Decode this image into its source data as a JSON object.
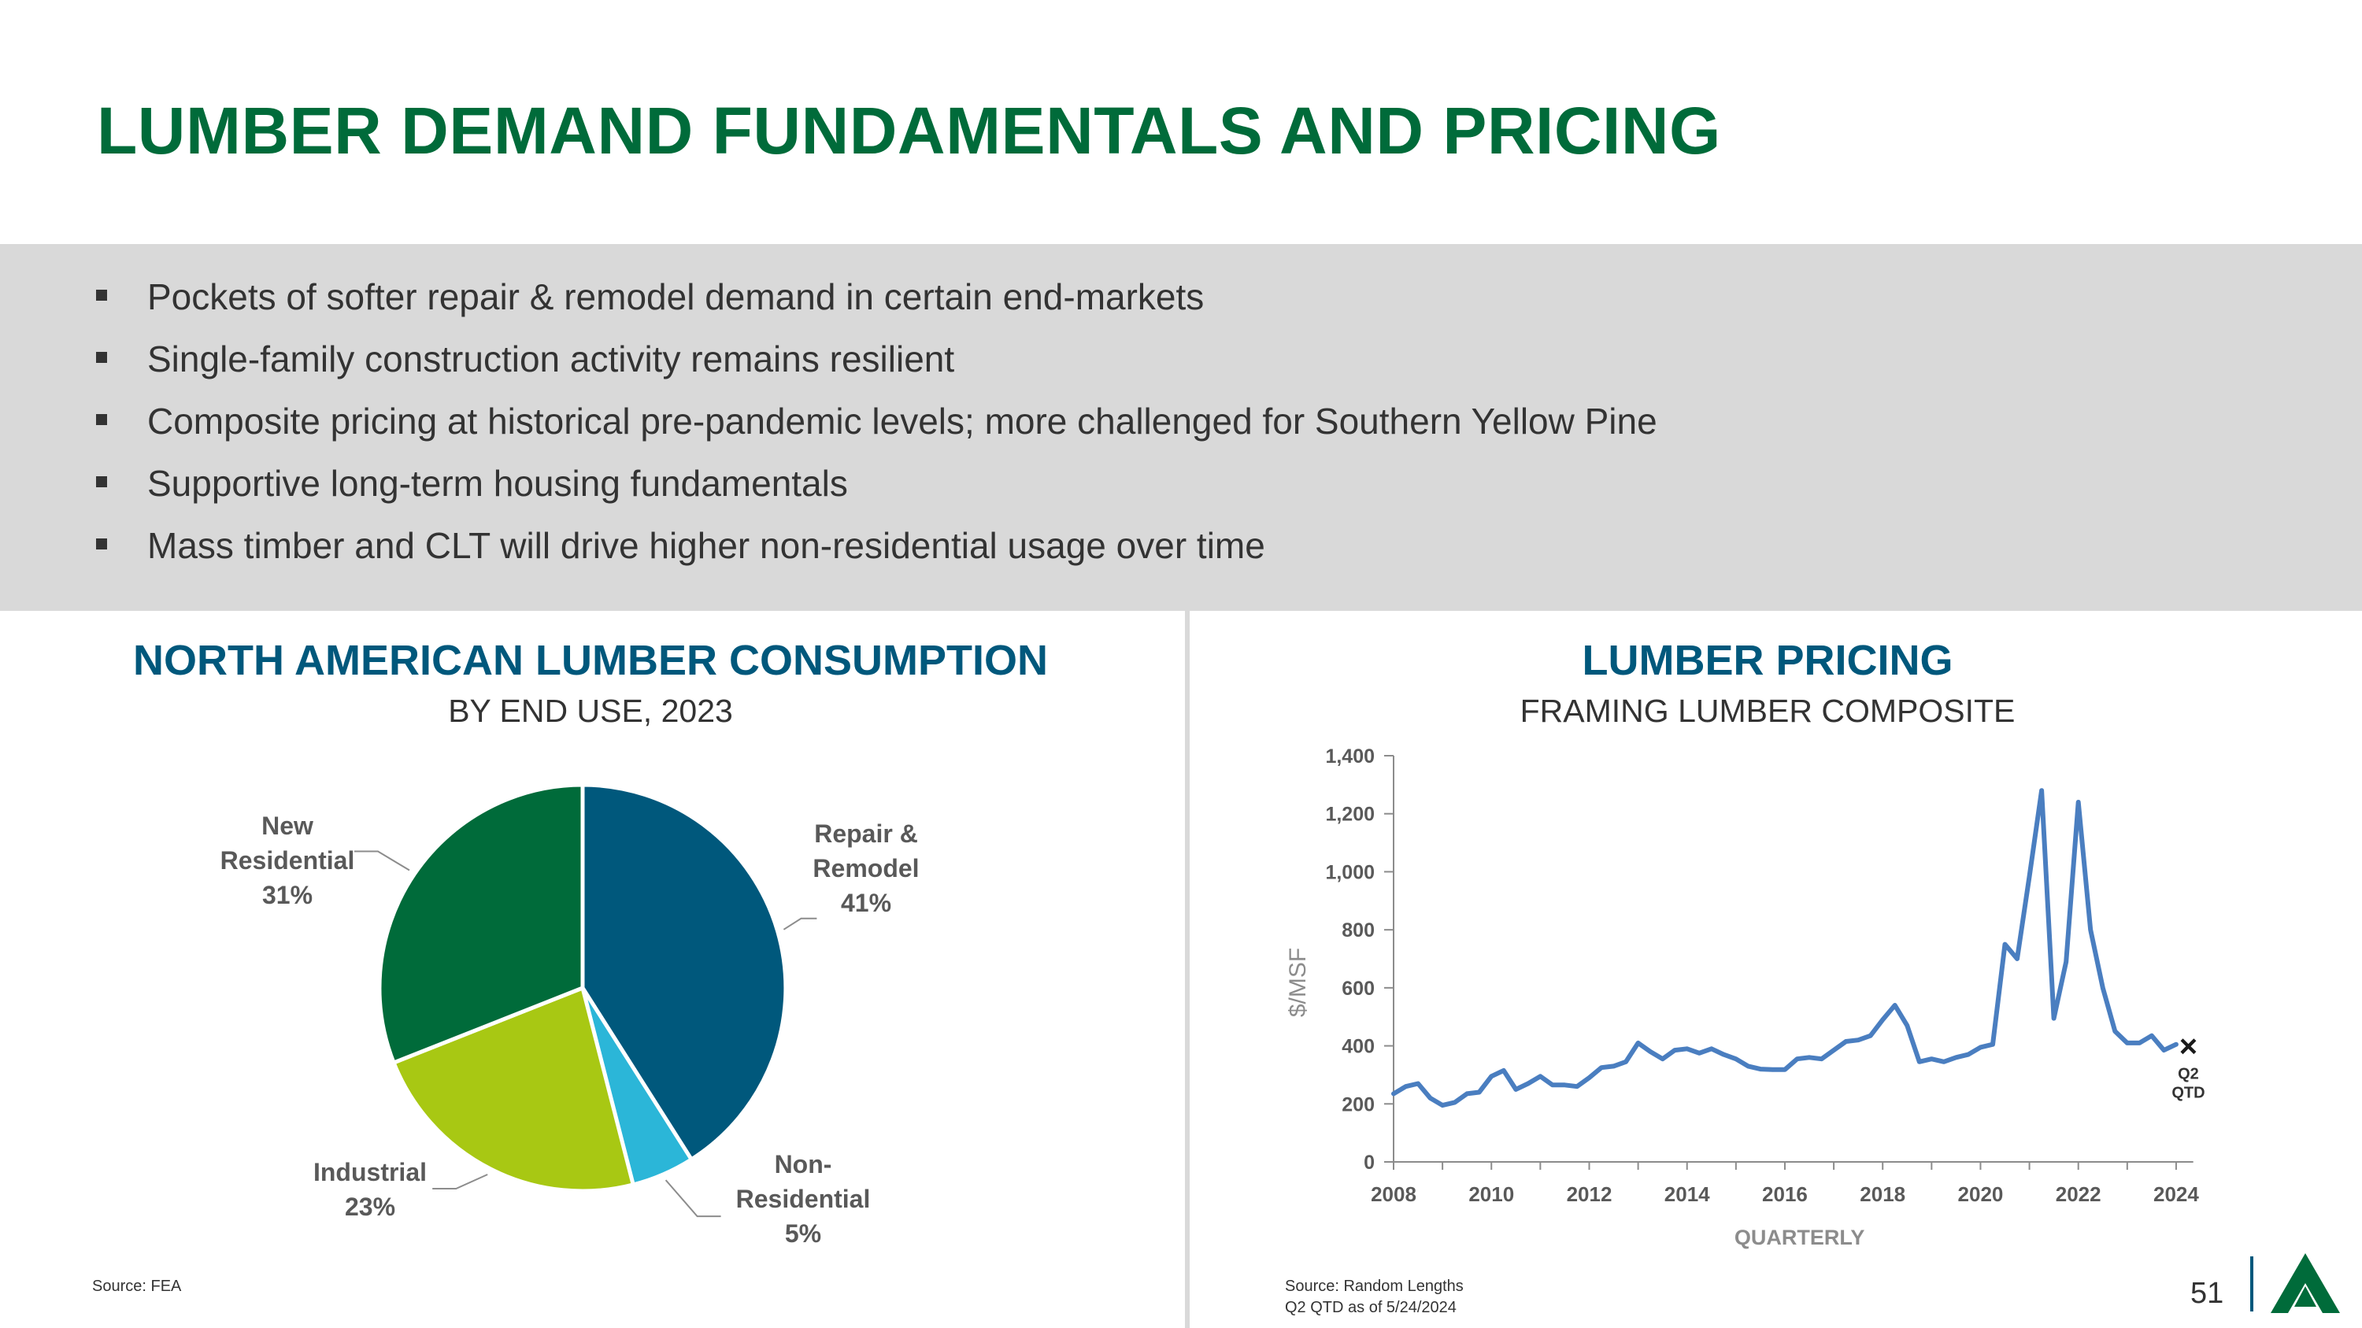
{
  "title": "LUMBER DEMAND FUNDAMENTALS AND PRICING",
  "bullets": [
    "Pockets of softer repair & remodel demand in certain end-markets",
    "Single-family construction activity remains resilient",
    "Composite pricing at historical pre-pandemic levels; more challenged for Southern Yellow Pine",
    "Supportive long-term housing fundamentals",
    "Mass timber and CLT will drive higher non-residential usage over time"
  ],
  "left_chart": {
    "source": "Source: FEA"
  },
  "right_chart": {
    "source_line1": "Source: Random Lengths",
    "source_line2": "Q2 QTD as of 5/24/2024"
  },
  "page_number": "51",
  "logo": "tree-logo",
  "colors": {
    "title_green": "#006b3a",
    "chart_title_blue": "#00587c",
    "repair_remodel": "#00587c",
    "non_residential": "#2bb6d8",
    "industrial": "#a8c813",
    "new_residential": "#006b3a",
    "line": "#4a7ec0"
  },
  "chart_data": [
    {
      "type": "pie",
      "title": "NORTH AMERICAN LUMBER CONSUMPTION",
      "subtitle": "BY END USE, 2023",
      "slices": [
        {
          "label_lines": [
            "Repair &",
            "Remodel",
            "41%"
          ],
          "name": "Repair & Remodel",
          "value": 41
        },
        {
          "label_lines": [
            "Non-",
            "Residential",
            "5%"
          ],
          "name": "Non-Residential",
          "value": 5
        },
        {
          "label_lines": [
            "Industrial",
            "23%"
          ],
          "name": "Industrial",
          "value": 23
        },
        {
          "label_lines": [
            "New",
            "Residential",
            "31%"
          ],
          "name": "New Residential",
          "value": 31
        }
      ]
    },
    {
      "type": "line",
      "title": "LUMBER PRICING",
      "subtitle": "FRAMING LUMBER COMPOSITE",
      "xlabel": "QUARTERLY",
      "ylabel": "$/MSF",
      "xlim": [
        2008,
        2024.5
      ],
      "ylim": [
        0,
        1400
      ],
      "yticks": [
        0,
        200,
        400,
        600,
        800,
        1000,
        1200,
        1400
      ],
      "ytick_labels": [
        "0",
        "200",
        "400",
        "600",
        "800",
        "1,000",
        "1,200",
        "1,400"
      ],
      "xticks": [
        2008,
        2010,
        2012,
        2014,
        2016,
        2018,
        2020,
        2022,
        2024
      ],
      "xtick_labels": [
        "2008",
        "2010",
        "2012",
        "2014",
        "2016",
        "2018",
        "2020",
        "2022",
        "2024"
      ],
      "x": [
        2008.0,
        2008.25,
        2008.5,
        2008.75,
        2009.0,
        2009.25,
        2009.5,
        2009.75,
        2010.0,
        2010.25,
        2010.5,
        2010.75,
        2011.0,
        2011.25,
        2011.5,
        2011.75,
        2012.0,
        2012.25,
        2012.5,
        2012.75,
        2013.0,
        2013.25,
        2013.5,
        2013.75,
        2014.0,
        2014.25,
        2014.5,
        2014.75,
        2015.0,
        2015.25,
        2015.5,
        2015.75,
        2016.0,
        2016.25,
        2016.5,
        2016.75,
        2017.0,
        2017.25,
        2017.5,
        2017.75,
        2018.0,
        2018.25,
        2018.5,
        2018.75,
        2019.0,
        2019.25,
        2019.5,
        2019.75,
        2020.0,
        2020.25,
        2020.5,
        2020.75,
        2021.0,
        2021.25,
        2021.5,
        2021.75,
        2022.0,
        2022.25,
        2022.5,
        2022.75,
        2023.0,
        2023.25,
        2023.5,
        2023.75,
        2024.0
      ],
      "y": [
        235,
        260,
        270,
        220,
        195,
        205,
        235,
        240,
        295,
        315,
        250,
        270,
        295,
        265,
        265,
        260,
        290,
        325,
        330,
        345,
        410,
        380,
        355,
        385,
        390,
        375,
        390,
        370,
        355,
        330,
        320,
        318,
        318,
        355,
        360,
        355,
        385,
        415,
        420,
        435,
        490,
        540,
        470,
        345,
        355,
        345,
        360,
        370,
        395,
        405,
        750,
        700,
        985,
        1280,
        495,
        690,
        1240,
        800,
        600,
        450,
        410,
        410,
        435,
        385,
        405
      ],
      "annotations": [
        {
          "marker": "×",
          "x": 2024.25,
          "y": 400,
          "text_lines": [
            "Q2",
            "QTD"
          ]
        }
      ]
    }
  ]
}
